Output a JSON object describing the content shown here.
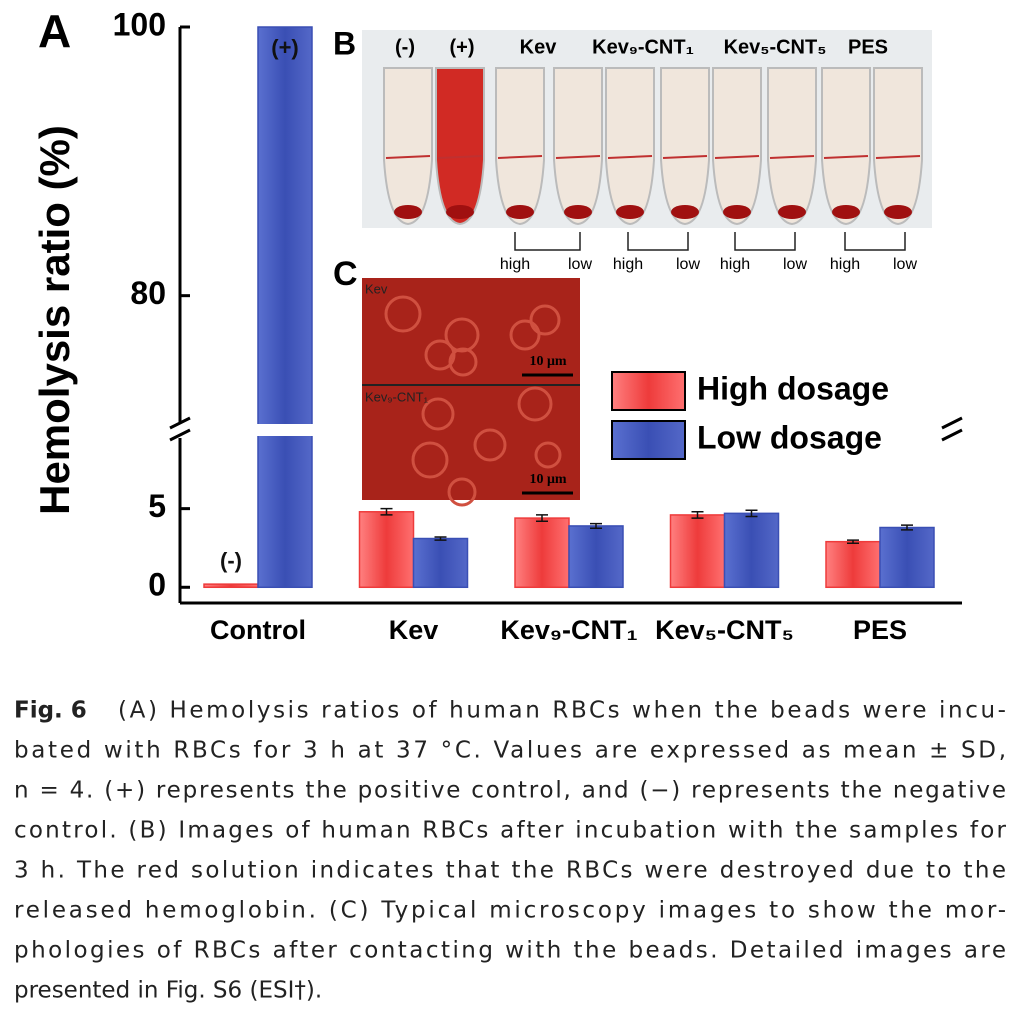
{
  "chart_data": {
    "type": "bar",
    "panel_label": "A",
    "ylabel": "Hemolysis ratio (%)",
    "categories": [
      "Control",
      "Kev",
      "Kev₉-CNT₁",
      "Kev₅-CNT₅",
      "PES"
    ],
    "series": [
      {
        "name": "High dosage",
        "color": "#ee3b3b",
        "values": [
          0.2,
          4.8,
          4.4,
          4.6,
          2.9
        ],
        "errors": [
          null,
          0.2,
          0.2,
          0.2,
          0.1
        ],
        "annotations": [
          "(-)",
          null,
          null,
          null,
          null
        ]
      },
      {
        "name": "Low dosage",
        "color": "#3a4fb4",
        "values": [
          100,
          3.1,
          3.9,
          4.7,
          3.8
        ],
        "errors": [
          null,
          0.1,
          0.15,
          0.2,
          0.15
        ],
        "annotations": [
          "(+)",
          null,
          null,
          null,
          null
        ]
      }
    ],
    "ylim": [
      -1,
      100
    ],
    "ybreak": [
      10,
      70
    ],
    "yticks": [
      0,
      5,
      80,
      100
    ]
  },
  "inset_b": {
    "panel_label": "B",
    "tube_labels": [
      "(-)",
      "(+)",
      "Kev",
      "Kev₉-CNT₁",
      "Kev₅-CNT₅",
      "PES"
    ],
    "dose_labels": [
      "high",
      "low",
      "high",
      "low",
      "high",
      "low",
      "high",
      "low"
    ]
  },
  "inset_c": {
    "panel_label": "C",
    "image_labels": [
      "Kev",
      "Kev₉-CNT₁"
    ],
    "scale_bars": [
      "10 μm",
      "10 μm"
    ]
  },
  "caption": {
    "label": "Fig. 6",
    "lines": [
      "(A) Hemolysis ratios of human RBCs when the beads were incu-",
      "bated with RBCs for 3 h at 37 °C. Values are expressed as mean ± SD,",
      "n = 4. (+) represents the positive control, and (−) represents the negative",
      "control. (B) Images of human RBCs after incubation with the samples for",
      "3 h. The red solution indicates that the RBCs were destroyed due to the",
      "released hemoglobin. (C) Typical microscopy images to show the mor-",
      "phologies of RBCs after contacting with the beads. Detailed images are",
      "presented in Fig. S6 (ESI†)."
    ]
  }
}
